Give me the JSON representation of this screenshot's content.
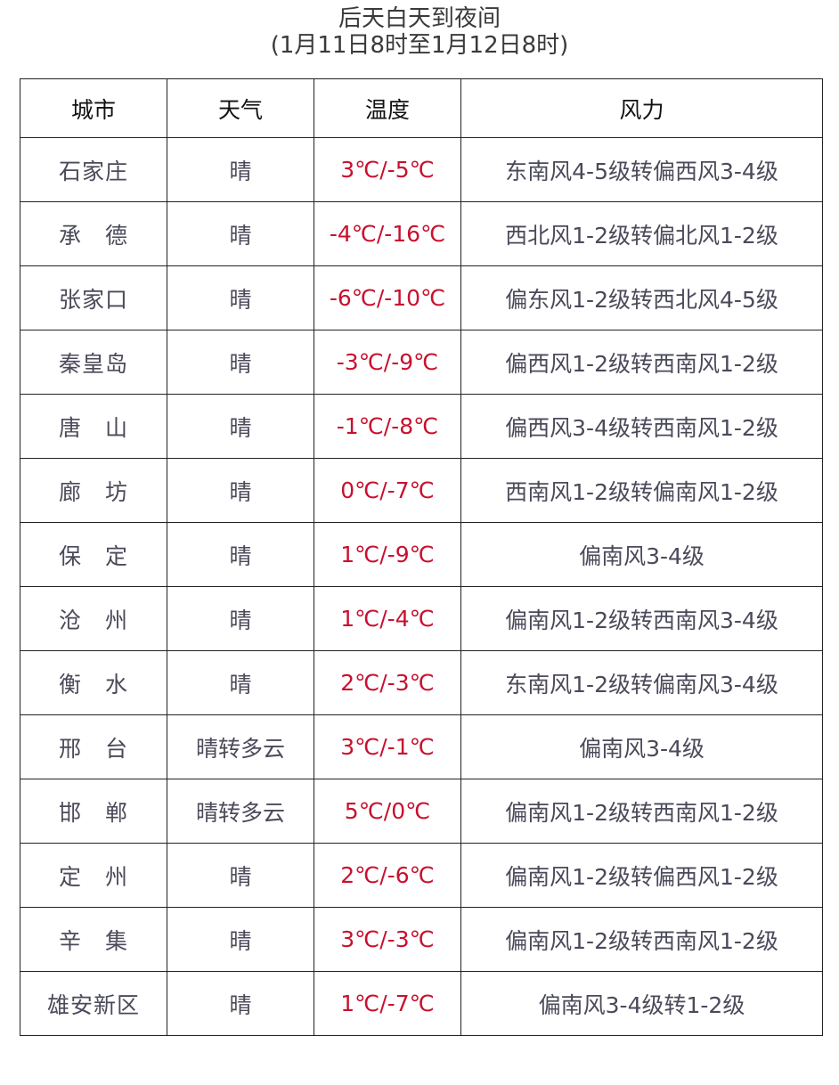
{
  "title": "后天白天到夜间",
  "subtitle": "(1月11日8时至1月12日8时)",
  "headers": [
    "城市",
    "天气",
    "温度",
    "风力"
  ],
  "colors": {
    "temperature": "#c8102e",
    "text": "#4a4a5a"
  },
  "rows": [
    {
      "city": "石家庄",
      "weather": "晴",
      "temp": "3℃/-5℃",
      "wind": "东南风4-5级转偏西风3-4级"
    },
    {
      "city": "承　德",
      "weather": "晴",
      "temp": "-4℃/-16℃",
      "wind": "西北风1-2级转偏北风1-2级"
    },
    {
      "city": "张家口",
      "weather": "晴",
      "temp": "-6℃/-10℃",
      "wind": "偏东风1-2级转西北风4-5级"
    },
    {
      "city": "秦皇岛",
      "weather": "晴",
      "temp": "-3℃/-9℃",
      "wind": "偏西风1-2级转西南风1-2级"
    },
    {
      "city": "唐　山",
      "weather": "晴",
      "temp": "-1℃/-8℃",
      "wind": "偏西风3-4级转西南风1-2级"
    },
    {
      "city": "廊　坊",
      "weather": "晴",
      "temp": "0℃/-7℃",
      "wind": "西南风1-2级转偏南风1-2级"
    },
    {
      "city": "保　定",
      "weather": "晴",
      "temp": "1℃/-9℃",
      "wind": "偏南风3-4级"
    },
    {
      "city": "沧　州",
      "weather": "晴",
      "temp": "1℃/-4℃",
      "wind": "偏南风1-2级转西南风3-4级"
    },
    {
      "city": "衡　水",
      "weather": "晴",
      "temp": "2℃/-3℃",
      "wind": "东南风1-2级转偏南风3-4级"
    },
    {
      "city": "邢　台",
      "weather": "晴转多云",
      "temp": "3℃/-1℃",
      "wind": "偏南风3-4级"
    },
    {
      "city": "邯　郸",
      "weather": "晴转多云",
      "temp": "5℃/0℃",
      "wind": "偏南风1-2级转西南风1-2级"
    },
    {
      "city": "定　州",
      "weather": "晴",
      "temp": "2℃/-6℃",
      "wind": "偏南风1-2级转偏西风1-2级"
    },
    {
      "city": "辛　集",
      "weather": "晴",
      "temp": "3℃/-3℃",
      "wind": "偏南风1-2级转西南风1-2级"
    },
    {
      "city": "雄安新区",
      "weather": "晴",
      "temp": "1℃/-7℃",
      "wind": "偏南风3-4级转1-2级"
    }
  ]
}
